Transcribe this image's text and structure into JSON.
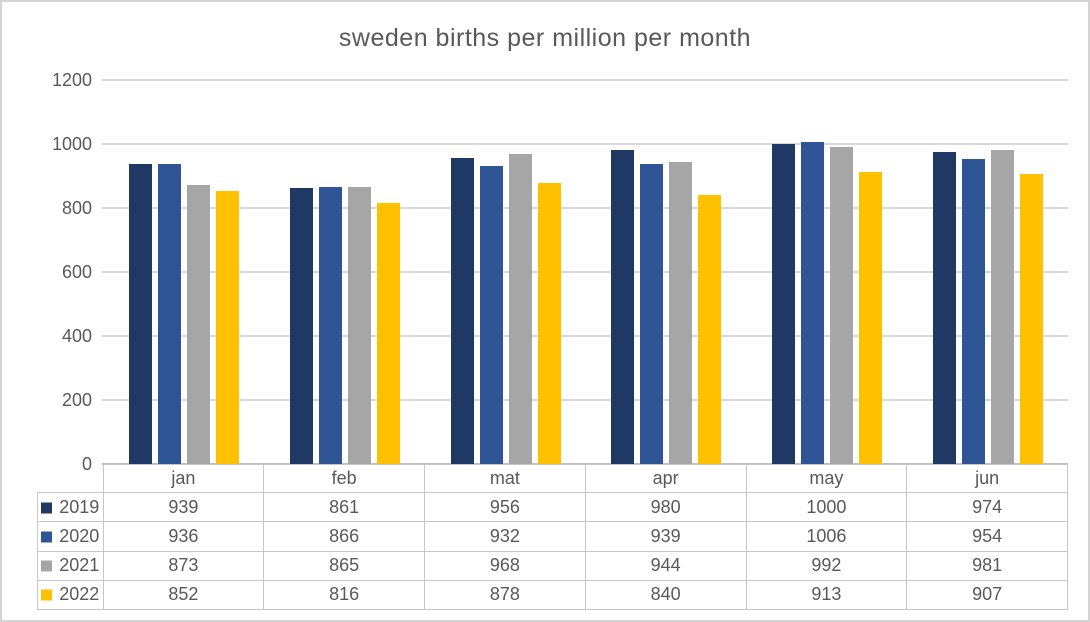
{
  "window": {
    "background_color": "#ffffff",
    "border_color": "#d4d4d4"
  },
  "chart_data": {
    "type": "bar",
    "title": "sweden births per million per month",
    "xlabel": "",
    "ylabel": "",
    "categories": [
      "jan",
      "feb",
      "mat",
      "apr",
      "may",
      "jun"
    ],
    "series": [
      {
        "name": "2019",
        "color": "#1F3864",
        "values": [
          939,
          861,
          956,
          980,
          1000,
          974
        ]
      },
      {
        "name": "2020",
        "color": "#2F5597",
        "values": [
          936,
          866,
          932,
          939,
          1006,
          954
        ]
      },
      {
        "name": "2021",
        "color": "#A6A6A6",
        "values": [
          873,
          865,
          968,
          944,
          992,
          981
        ]
      },
      {
        "name": "2022",
        "color": "#FFC000",
        "values": [
          852,
          816,
          878,
          840,
          913,
          907
        ]
      }
    ],
    "ylim": [
      0,
      1200
    ],
    "yticks": [
      0,
      200,
      400,
      600,
      800,
      1000,
      1200
    ],
    "grid": true,
    "gridline_color": "#d9d9d9",
    "axis_line_color": "#bfbfbf",
    "table_border_color": "#c6c6c6",
    "text_color": "#595959",
    "legend_position": "data-table-left"
  }
}
